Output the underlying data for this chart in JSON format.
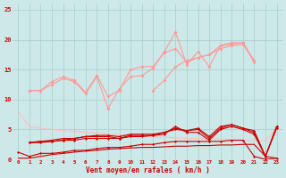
{
  "background_color": "#cde8e8",
  "grid_color": "#aacccc",
  "x_labels": [
    "0",
    "1",
    "2",
    "3",
    "4",
    "5",
    "6",
    "7",
    "8",
    "9",
    "10",
    "11",
    "12",
    "13",
    "14",
    "15",
    "16",
    "17",
    "18",
    "19",
    "20",
    "21",
    "22",
    "23"
  ],
  "xlabel": "Vent moyen/en rafales ( km/h )",
  "ylim": [
    0,
    26
  ],
  "yticks": [
    0,
    5,
    10,
    15,
    20,
    25
  ],
  "smooth_light": [
    8.0,
    5.5,
    5.2,
    5.0,
    4.8,
    4.7,
    4.5,
    4.4,
    4.2,
    4.1,
    4.0,
    3.9,
    3.8,
    3.7,
    3.6,
    3.5,
    3.5,
    3.4,
    3.4,
    3.3,
    3.2,
    3.2,
    3.1,
    5.2
  ],
  "jagged1": [
    null,
    11.5,
    11.5,
    12.5,
    13.5,
    13.0,
    11.0,
    13.8,
    8.5,
    11.8,
    13.8,
    14.0,
    15.2,
    18.0,
    21.2,
    15.8,
    18.0,
    15.5,
    19.0,
    19.5,
    19.5,
    16.5,
    null,
    null
  ],
  "jagged2": [
    null,
    11.5,
    11.5,
    13.0,
    13.8,
    13.2,
    11.2,
    14.0,
    10.5,
    11.5,
    15.0,
    15.5,
    15.5,
    17.8,
    18.5,
    16.2,
    17.0,
    17.5,
    19.0,
    19.2,
    19.5,
    16.2,
    null,
    null
  ],
  "jagged3": [
    null,
    null,
    null,
    null,
    null,
    null,
    null,
    null,
    null,
    null,
    null,
    null,
    11.5,
    13.2,
    15.5,
    16.5,
    17.0,
    17.5,
    18.5,
    19.0,
    19.2,
    16.5,
    null,
    null
  ],
  "dark1": [
    1.2,
    0.5,
    1.0,
    1.0,
    1.2,
    1.5,
    1.5,
    1.8,
    2.0,
    2.0,
    2.2,
    2.5,
    2.5,
    2.8,
    3.0,
    3.0,
    3.0,
    3.0,
    3.0,
    3.2,
    3.2,
    0.5,
    0.0,
    0.2
  ],
  "dark2": [
    null,
    2.8,
    2.8,
    3.0,
    3.2,
    3.2,
    3.5,
    3.5,
    3.5,
    3.5,
    3.8,
    3.8,
    4.0,
    4.2,
    5.5,
    4.5,
    4.5,
    3.2,
    5.0,
    5.5,
    5.0,
    4.2,
    0.5,
    5.2
  ],
  "dark3": [
    null,
    2.8,
    3.0,
    3.0,
    3.2,
    3.5,
    3.8,
    3.8,
    3.8,
    3.5,
    4.0,
    4.0,
    4.0,
    4.5,
    5.0,
    4.8,
    5.0,
    3.5,
    5.2,
    5.8,
    5.2,
    4.5,
    0.5,
    5.5
  ],
  "dark4": [
    null,
    2.8,
    3.0,
    3.2,
    3.5,
    3.5,
    3.8,
    4.0,
    4.0,
    3.8,
    4.2,
    4.2,
    4.2,
    4.5,
    5.2,
    4.8,
    5.2,
    3.8,
    5.5,
    5.8,
    5.2,
    4.8,
    0.5,
    5.5
  ],
  "smooth_dark": [
    0.2,
    0.2,
    0.5,
    0.8,
    1.0,
    1.2,
    1.4,
    1.5,
    1.7,
    1.8,
    1.9,
    2.0,
    2.0,
    2.1,
    2.2,
    2.2,
    2.3,
    2.3,
    2.4,
    2.4,
    2.5,
    2.5,
    0.5,
    0.2
  ],
  "color_dark_red": "#cc0000",
  "color_light_red": "#ff9999",
  "color_smooth_light": "#ffbbbb"
}
